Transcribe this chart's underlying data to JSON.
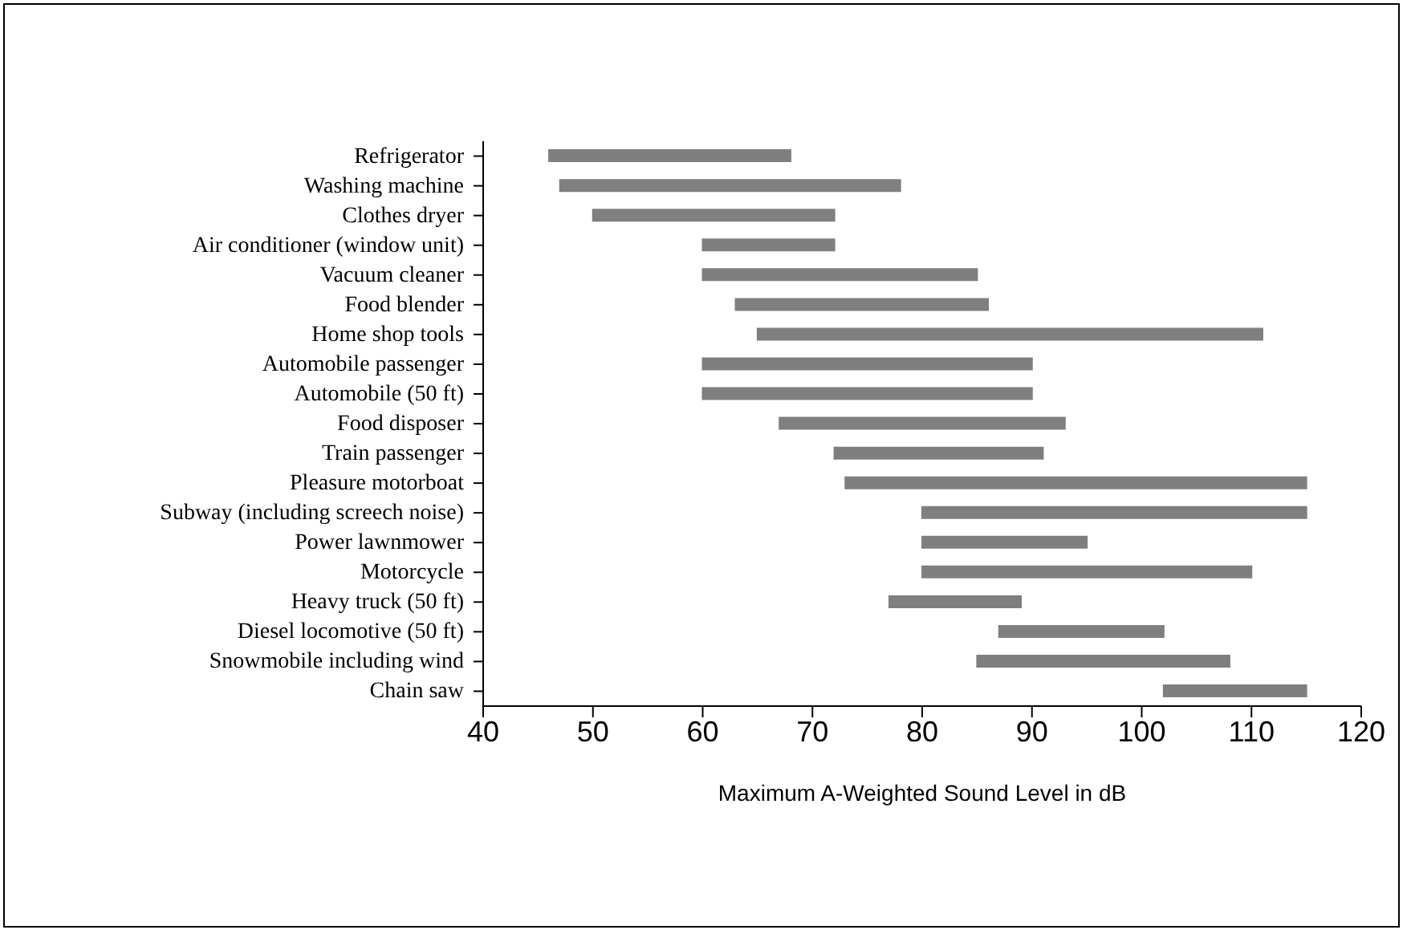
{
  "chart_data": {
    "type": "bar",
    "orientation": "horizontal",
    "xlabel": "Maximum A-Weighted Sound Level in dB",
    "categories": [
      "Refrigerator",
      "Washing machine",
      "Clothes dryer",
      "Air conditioner (window unit)",
      "Vacuum cleaner",
      "Food blender",
      "Home shop tools",
      "Automobile passenger",
      "Automobile (50 ft)",
      "Food disposer",
      "Train passenger",
      "Pleasure motorboat",
      "Subway (including screech noise)",
      "Power lawnmower",
      "Motorcycle",
      "Heavy truck (50 ft)",
      "Diesel locomotive (50 ft)",
      "Snowmobile including wind",
      "Chain saw"
    ],
    "base": [
      46,
      47,
      50,
      60,
      60,
      63,
      65,
      60,
      60,
      67,
      72,
      73,
      80,
      80,
      80,
      77,
      87,
      85,
      102
    ],
    "values": [
      22,
      31,
      22,
      12,
      25,
      23,
      46,
      30,
      30,
      26,
      19,
      42,
      35,
      15,
      30,
      12,
      15,
      23,
      13
    ],
    "color": "#7f7f7f",
    "xlim": [
      40,
      120
    ],
    "xticks": [
      40,
      50,
      60,
      70,
      80,
      90,
      100,
      110,
      120
    ],
    "grid": false,
    "legend": false
  }
}
